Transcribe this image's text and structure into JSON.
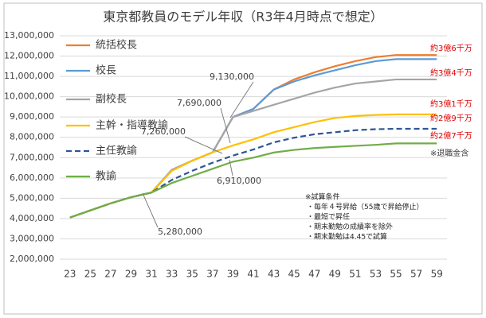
{
  "chart_data": {
    "type": "line",
    "title": "東京都教員のモデル年収（R3年4月時点で想定）",
    "x": [
      23,
      25,
      27,
      29,
      31,
      33,
      35,
      37,
      39,
      41,
      43,
      45,
      47,
      49,
      51,
      53,
      55,
      57,
      59
    ],
    "xlim": [
      22,
      60
    ],
    "xticks": [
      23,
      25,
      27,
      29,
      31,
      33,
      35,
      37,
      39,
      41,
      43,
      45,
      47,
      49,
      51,
      53,
      55,
      57,
      59
    ],
    "ylim": [
      2000000,
      13000000
    ],
    "yticks": [
      {
        "value": 2000000,
        "label": "2,000,000"
      },
      {
        "value": 3000000,
        "label": "3,000,000"
      },
      {
        "value": 4000000,
        "label": "4,000,000"
      },
      {
        "value": 5000000,
        "label": "5,000,000"
      },
      {
        "value": 6000000,
        "label": "6,000,000"
      },
      {
        "value": 7000000,
        "label": "7,000,000"
      },
      {
        "value": 8000000,
        "label": "8,000,000"
      },
      {
        "value": 9000000,
        "label": "9,000,000"
      },
      {
        "value": 10000000,
        "label": "10,000,000"
      },
      {
        "value": 11000000,
        "label": "11,000,000"
      },
      {
        "value": 12000000,
        "label": "12,000,000"
      },
      {
        "value": 13000000,
        "label": "13,000,000"
      }
    ],
    "grid": true,
    "series": [
      {
        "name": "統括校長",
        "color": "#ed7d31",
        "dash": false,
        "values": [
          4050000,
          4400000,
          4750000,
          5050000,
          5280000,
          6400000,
          6850000,
          7260000,
          9000000,
          9400000,
          10350000,
          10850000,
          11200000,
          11500000,
          11750000,
          11950000,
          12050000,
          12050000,
          12050000
        ]
      },
      {
        "name": "校長",
        "color": "#5b9bd5",
        "dash": false,
        "values": [
          4050000,
          4400000,
          4750000,
          5050000,
          5280000,
          6400000,
          6850000,
          7260000,
          9000000,
          9400000,
          10350000,
          10750000,
          11050000,
          11300000,
          11550000,
          11750000,
          11850000,
          11850000,
          11850000
        ]
      },
      {
        "name": "副校長",
        "color": "#a5a5a5",
        "dash": false,
        "values": [
          4050000,
          4400000,
          4750000,
          5050000,
          5280000,
          6400000,
          6850000,
          7260000,
          9000000,
          9300000,
          9600000,
          9900000,
          10200000,
          10450000,
          10650000,
          10750000,
          10850000,
          10850000,
          10850000
        ]
      },
      {
        "name": "主幹・指導教諭",
        "color": "#ffc000",
        "dash": false,
        "values": [
          4050000,
          4400000,
          4750000,
          5050000,
          5280000,
          6350000,
          6850000,
          7260000,
          7600000,
          7900000,
          8250000,
          8500000,
          8750000,
          8950000,
          9050000,
          9100000,
          9130000,
          9130000,
          9130000
        ]
      },
      {
        "name": "主任教諭",
        "color": "#2f5597",
        "dash": true,
        "values": [
          4050000,
          4400000,
          4750000,
          5050000,
          5280000,
          5900000,
          6350000,
          6750000,
          7100000,
          7400000,
          7750000,
          7980000,
          8150000,
          8250000,
          8350000,
          8400000,
          8420000,
          8420000,
          8420000
        ]
      },
      {
        "name": "教諭",
        "color": "#70ad47",
        "dash": false,
        "values": [
          4050000,
          4400000,
          4750000,
          5050000,
          5280000,
          5750000,
          6100000,
          6450000,
          6800000,
          7000000,
          7250000,
          7380000,
          7470000,
          7530000,
          7580000,
          7630000,
          7700000,
          7700000,
          7700000
        ]
      }
    ],
    "annotations": [
      "9,130,000",
      "7,690,000",
      "7,260,000",
      "6,910,000",
      "5,280,000"
    ],
    "right_labels": [
      "約3億6千万",
      "約3億4千万",
      "約3億1千万",
      "約2億9千万",
      "約2億7千万",
      "※退職金含"
    ],
    "notes": [
      "※試算条件",
      "・毎年４号昇給（55歳で昇給停止）",
      "・最短で昇任",
      "・期末勤勉の成績率を除外",
      "・期末勤勉は4.45で試算"
    ]
  }
}
